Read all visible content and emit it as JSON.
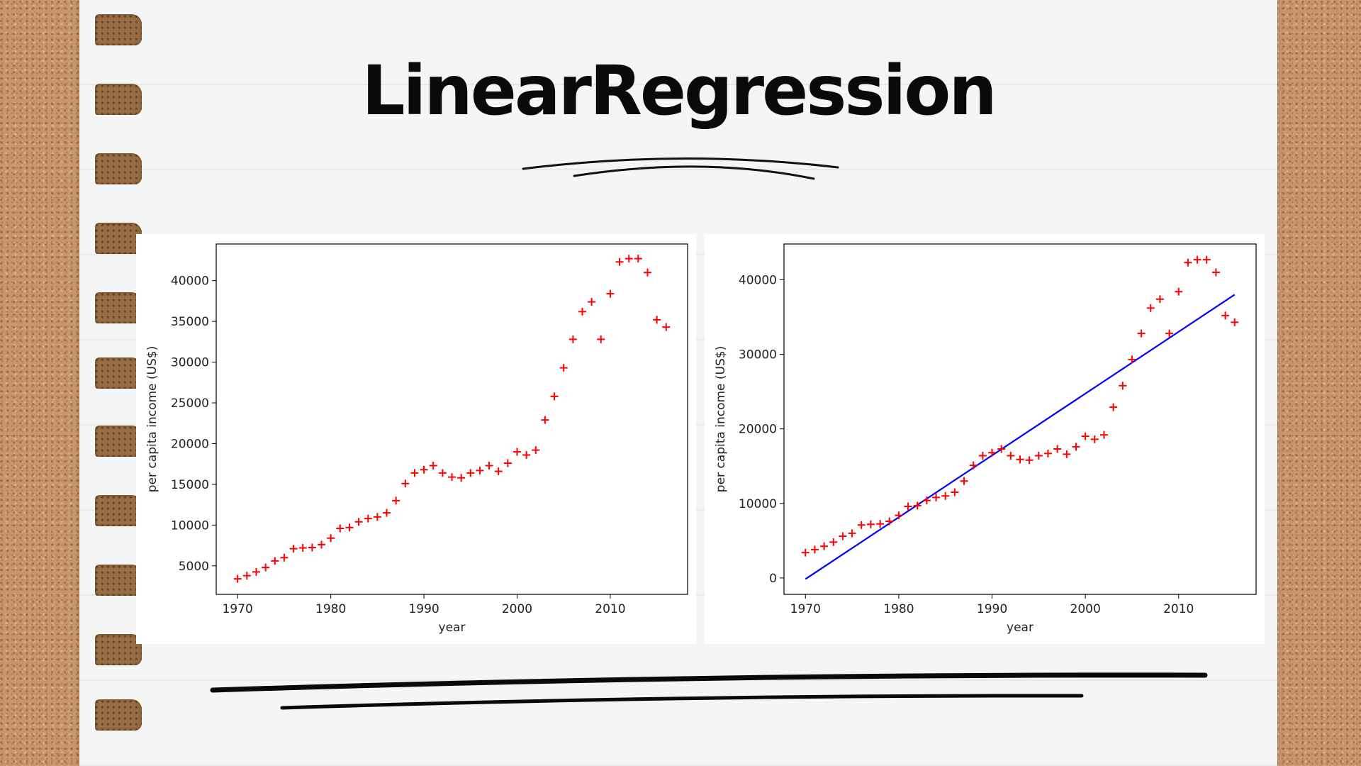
{
  "slide": {
    "title": "LinearRegression"
  },
  "colors": {
    "points": "#ff0000",
    "fit_line": "#0000ff"
  },
  "chart_data": [
    {
      "type": "scatter",
      "title": "",
      "xlabel": "year",
      "ylabel": "per capita income (US$)",
      "xlim": [
        1967.7,
        2018.3
      ],
      "ylim": [
        1500,
        44500
      ],
      "xticks": [
        1970,
        1980,
        1990,
        2000,
        2010
      ],
      "yticks": [
        5000,
        10000,
        15000,
        20000,
        25000,
        30000,
        35000,
        40000
      ],
      "marker": "+",
      "grid": false,
      "x": [
        1970,
        1971,
        1972,
        1973,
        1974,
        1975,
        1976,
        1977,
        1978,
        1979,
        1980,
        1981,
        1982,
        1983,
        1984,
        1985,
        1986,
        1987,
        1988,
        1989,
        1990,
        1991,
        1992,
        1993,
        1994,
        1995,
        1996,
        1997,
        1998,
        1999,
        2000,
        2001,
        2002,
        2003,
        2004,
        2005,
        2006,
        2007,
        2008,
        2009,
        2010,
        2011,
        2012,
        2013,
        2014,
        2015,
        2016
      ],
      "y": [
        3400,
        3800,
        4250,
        4800,
        5600,
        6000,
        7100,
        7200,
        7250,
        7600,
        8400,
        9600,
        9700,
        10400,
        10800,
        11000,
        11500,
        13000,
        15100,
        16400,
        16800,
        17300,
        16400,
        15900,
        15800,
        16400,
        16700,
        17300,
        16600,
        17600,
        19000,
        18600,
        19200,
        22900,
        25800,
        29300,
        32800,
        36200,
        37400,
        32800,
        38400,
        42300,
        42700,
        42700,
        41000,
        35200,
        34300
      ]
    },
    {
      "type": "scatter",
      "title": "",
      "xlabel": "year",
      "ylabel": "per capita income (US$)",
      "xlim": [
        1967.7,
        2018.3
      ],
      "ylim": [
        -2200,
        44800
      ],
      "xticks": [
        1970,
        1980,
        1990,
        2000,
        2010
      ],
      "yticks": [
        0,
        10000,
        20000,
        30000,
        40000
      ],
      "marker": "+",
      "grid": false,
      "x": [
        1970,
        1971,
        1972,
        1973,
        1974,
        1975,
        1976,
        1977,
        1978,
        1979,
        1980,
        1981,
        1982,
        1983,
        1984,
        1985,
        1986,
        1987,
        1988,
        1989,
        1990,
        1991,
        1992,
        1993,
        1994,
        1995,
        1996,
        1997,
        1998,
        1999,
        2000,
        2001,
        2002,
        2003,
        2004,
        2005,
        2006,
        2007,
        2008,
        2009,
        2010,
        2011,
        2012,
        2013,
        2014,
        2015,
        2016
      ],
      "y": [
        3400,
        3800,
        4250,
        4800,
        5600,
        6000,
        7100,
        7200,
        7250,
        7600,
        8400,
        9600,
        9700,
        10400,
        10800,
        11000,
        11500,
        13000,
        15100,
        16400,
        16800,
        17300,
        16400,
        15900,
        15800,
        16400,
        16700,
        17300,
        16600,
        17600,
        19000,
        18600,
        19200,
        22900,
        25800,
        29300,
        32800,
        36200,
        37400,
        32800,
        38400,
        42300,
        42700,
        42700,
        41000,
        35200,
        34300
      ],
      "fit_line": {
        "x": [
          1970,
          2016
        ],
        "y": [
          -150,
          38000
        ]
      }
    }
  ]
}
